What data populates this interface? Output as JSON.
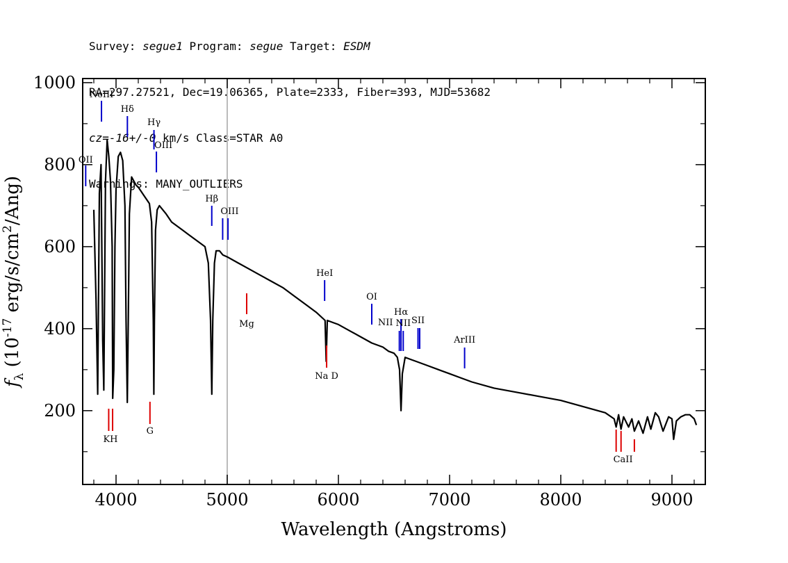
{
  "header": {
    "line1_prefix": "Survey: ",
    "survey": "segue1",
    "line1_mid": " Program: ",
    "program": "segue",
    "line1_mid2": " Target: ",
    "target": "ESDM",
    "line2": "RA=297.27521, Dec=19.06365, Plate=2333, Fiber=393, MJD=53682",
    "line3_italic": "cz=-16+/-0",
    "line3_rest": " km/s Class=STAR A0",
    "line4": "Warnings: MANY_OUTLIERS"
  },
  "chart_data": {
    "type": "line",
    "xlabel": "Wavelength (Angstroms)",
    "ylabel": "f_λ (10^-17 erg/s/cm^2/Ang)",
    "xlim": [
      3700,
      9300
    ],
    "ylim": [
      20,
      1010
    ],
    "xticks": [
      "4000",
      "5000",
      "6000",
      "7000",
      "8000",
      "9000"
    ],
    "yticks": [
      "200",
      "400",
      "600",
      "800",
      "1000"
    ],
    "reference_line_x": 5000,
    "colors": {
      "spectrum": "#000000",
      "emission": "#0000cc",
      "absorption": "#dd0000",
      "reference": "#bbbbbb"
    },
    "spectrum": {
      "x": [
        3800,
        3820,
        3835,
        3850,
        3865,
        3880,
        3890,
        3905,
        3920,
        3935,
        3950,
        3965,
        3970,
        3980,
        3990,
        4000,
        4020,
        4040,
        4060,
        4080,
        4090,
        4101,
        4110,
        4120,
        4140,
        4160,
        4180,
        4200,
        4250,
        4300,
        4320,
        4335,
        4340,
        4345,
        4355,
        4370,
        4390,
        4420,
        4450,
        4500,
        4550,
        4600,
        4650,
        4700,
        4750,
        4800,
        4830,
        4850,
        4861,
        4870,
        4885,
        4900,
        4930,
        4960,
        5000,
        5100,
        5200,
        5300,
        5400,
        5500,
        5600,
        5700,
        5800,
        5880,
        5890,
        5900,
        5950,
        6000,
        6100,
        6200,
        6300,
        6400,
        6450,
        6500,
        6530,
        6550,
        6563,
        6575,
        6600,
        6650,
        6700,
        6800,
        6900,
        7000,
        7100,
        7200,
        7400,
        7600,
        7800,
        8000,
        8200,
        8400,
        8480,
        8498,
        8520,
        8542,
        8565,
        8610,
        8640,
        8662,
        8700,
        8740,
        8780,
        8810,
        8850,
        8880,
        8920,
        8970,
        9000,
        9015,
        9040,
        9080,
        9120,
        9160,
        9200,
        9220
      ],
      "y": [
        690,
        470,
        240,
        730,
        800,
        370,
        250,
        760,
        860,
        820,
        760,
        600,
        230,
        300,
        600,
        740,
        820,
        830,
        810,
        700,
        420,
        220,
        420,
        680,
        770,
        760,
        750,
        745,
        725,
        705,
        660,
        420,
        240,
        420,
        640,
        690,
        700,
        690,
        680,
        660,
        650,
        640,
        630,
        620,
        610,
        600,
        560,
        420,
        240,
        420,
        560,
        590,
        590,
        580,
        575,
        560,
        545,
        530,
        515,
        500,
        480,
        460,
        440,
        420,
        320,
        420,
        415,
        410,
        395,
        380,
        365,
        355,
        345,
        340,
        330,
        300,
        200,
        290,
        330,
        325,
        320,
        310,
        300,
        290,
        280,
        270,
        255,
        245,
        235,
        225,
        210,
        195,
        180,
        160,
        190,
        155,
        185,
        160,
        180,
        150,
        175,
        145,
        185,
        155,
        195,
        185,
        150,
        185,
        180,
        130,
        175,
        185,
        190,
        190,
        180,
        165
      ]
    },
    "emission_lines": [
      {
        "name": "OII",
        "x": 3727
      },
      {
        "name": "NeIII",
        "x": 3869
      },
      {
        "name": "Hδ",
        "x": 4102
      },
      {
        "name": "Hγ",
        "x": 4341
      },
      {
        "name": "OIII",
        "x": 4363
      },
      {
        "name": "Hβ",
        "x": 4861
      },
      {
        "name": "OIII",
        "x": 4959
      },
      {
        "name": "OIII",
        "x": 5007
      },
      {
        "name": "HeI",
        "x": 5876
      },
      {
        "name": "OI",
        "x": 6300
      },
      {
        "name": "NII",
        "x": 6548
      },
      {
        "name": "Hα",
        "x": 6563
      },
      {
        "name": "NII",
        "x": 6583
      },
      {
        "name": "SII",
        "x": 6716
      },
      {
        "name": "SII",
        "x": 6731
      },
      {
        "name": "ArIII",
        "x": 7135
      }
    ],
    "absorption_lines": [
      {
        "name": "KH",
        "x": 3934
      },
      {
        "name": "KH",
        "x": 3969
      },
      {
        "name": "G",
        "x": 4305
      },
      {
        "name": "Mg",
        "x": 5175
      },
      {
        "name": "Na D",
        "x": 5894
      },
      {
        "name": "CaII",
        "x": 8498
      },
      {
        "name": "CaII",
        "x": 8542
      },
      {
        "name": "CaII",
        "x": 8662
      }
    ]
  }
}
